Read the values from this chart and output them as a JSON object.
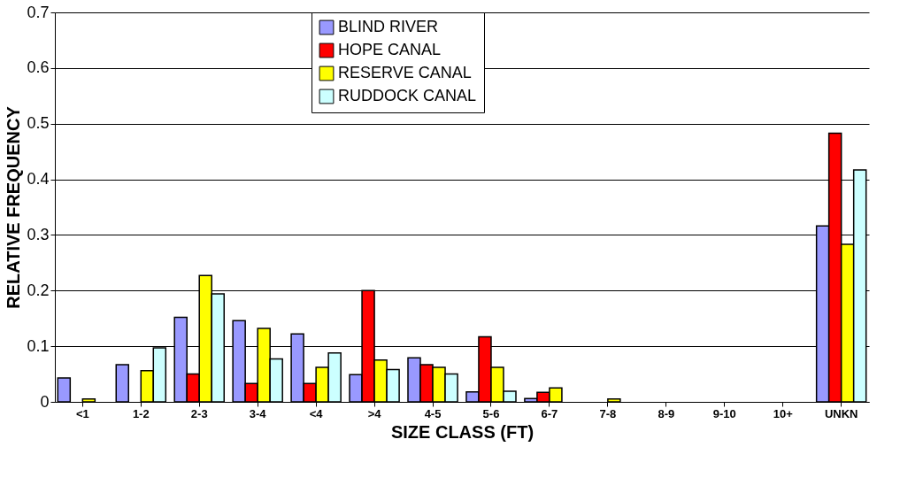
{
  "chart_data": {
    "type": "bar",
    "xlabel": "SIZE CLASS (FT)",
    "ylabel": "RELATIVE FREQUENCY",
    "categories": [
      "<1",
      "1-2",
      "2-3",
      "3-4",
      "<4",
      ">4",
      "4-5",
      "5-6",
      "6-7",
      "7-8",
      "8-9",
      "9-10",
      "10+",
      "UNKN"
    ],
    "series": [
      {
        "name": "BLIND RIVER",
        "color": "#9999ff",
        "values": [
          0.043,
          0.067,
          0.152,
          0.146,
          0.122,
          0.049,
          0.079,
          0.018,
          0.006,
          null,
          null,
          null,
          null,
          0.316
        ]
      },
      {
        "name": "HOPE CANAL",
        "color": "#ff0000",
        "values": [
          null,
          null,
          0.05,
          0.033,
          0.033,
          0.2,
          0.067,
          0.117,
          0.017,
          null,
          null,
          null,
          null,
          0.483
        ]
      },
      {
        "name": "RESERVE CANAL",
        "color": "#ffff00",
        "values": [
          0.005,
          0.056,
          0.227,
          0.132,
          0.062,
          0.075,
          0.062,
          0.062,
          0.025,
          0.005,
          null,
          null,
          null,
          0.283
        ]
      },
      {
        "name": "RUDDOCK CANAL",
        "color": "#ccffff",
        "values": [
          null,
          0.097,
          0.194,
          0.077,
          0.088,
          0.058,
          0.05,
          0.019,
          null,
          null,
          null,
          null,
          null,
          0.417
        ]
      }
    ],
    "ylim": [
      0,
      0.7
    ],
    "yticks": [
      0,
      0.1,
      0.2,
      0.3,
      0.4,
      0.5,
      0.6,
      0.7
    ],
    "grid": "y",
    "legend": "top"
  }
}
